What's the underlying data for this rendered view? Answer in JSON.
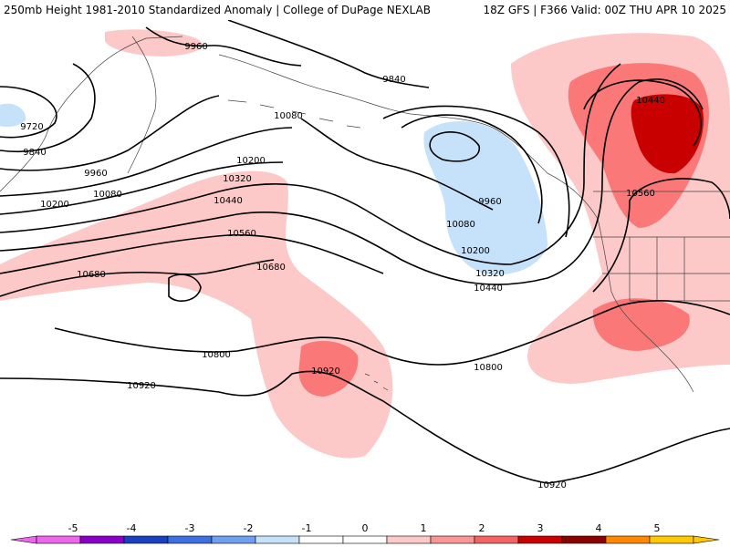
{
  "header": {
    "left_title": "250mb Height 1981-2010 Standardized Anomaly | College of DuPage NEXLAB",
    "right_title": "18Z GFS | F366 Valid: 00Z THU APR 10 2025"
  },
  "contour_labels": [
    "9960",
    "9840",
    "9720",
    "9840",
    "9960",
    "10080",
    "10080",
    "10200",
    "10200",
    "10320",
    "10440",
    "10560",
    "10680",
    "10680",
    "10800",
    "10920",
    "10920",
    "10800",
    "10920",
    "9960",
    "10080",
    "10200",
    "10320",
    "10440",
    "10440",
    "10560"
  ],
  "colorbar": {
    "ticks": [
      "-5",
      "-4",
      "-3",
      "-2",
      "-1",
      "0",
      "1",
      "2",
      "3",
      "4",
      "5"
    ],
    "colors": [
      "#ee66ee",
      "#8a00c8",
      "#1a3fbf",
      "#3d6fe0",
      "#6f9ff0",
      "#c6e2fa",
      "#ffffff",
      "#ffffff",
      "#fcc8c8",
      "#fa9696",
      "#f56464",
      "#c80000",
      "#8b0000",
      "#ff8800",
      "#ffc800"
    ]
  },
  "colors": {
    "anom_pos_1": "#fcc8c8",
    "anom_pos_2": "#fa7878",
    "anom_pos_3": "#c80000",
    "anom_neg_1": "#c6e2fa"
  }
}
